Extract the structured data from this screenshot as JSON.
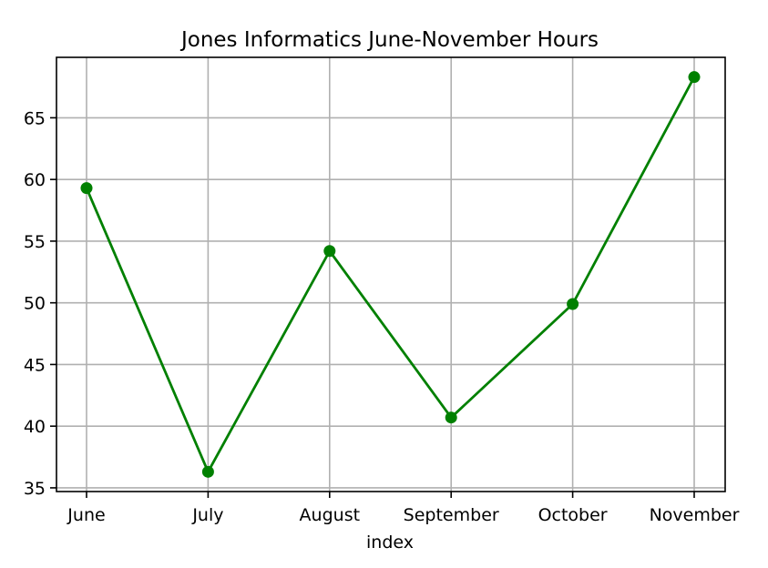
{
  "chart_data": {
    "type": "line",
    "title": "Jones Informatics June-November Hours",
    "xlabel": "index",
    "ylabel": "",
    "categories": [
      "June",
      "July",
      "August",
      "September",
      "October",
      "November"
    ],
    "series": [
      {
        "values": [
          59.3,
          36.3,
          54.2,
          40.7,
          49.9,
          68.3
        ],
        "color": "#008000",
        "marker": "circle"
      }
    ],
    "yticks": [
      35,
      40,
      45,
      50,
      55,
      60,
      65
    ],
    "ylim": [
      34.7,
      69.9
    ],
    "grid": true,
    "legend": "none"
  }
}
